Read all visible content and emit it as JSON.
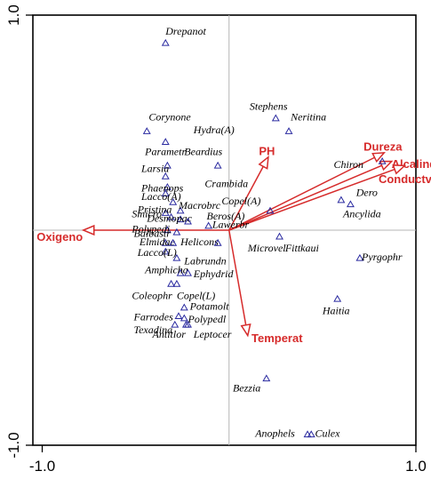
{
  "chart_data": {
    "type": "scatter",
    "title": "",
    "xlabel": "",
    "ylabel": "",
    "xlim": [
      -1.05,
      1.0
    ],
    "ylim": [
      -1.0,
      1.0
    ],
    "x_ticks": [
      {
        "value": -1.0,
        "label": "-1.0"
      },
      {
        "value": 1.0,
        "label": "1.0"
      }
    ],
    "y_ticks": [
      {
        "value": 1.0,
        "label": "1.0"
      },
      {
        "value": -1.0,
        "label": "-1.0"
      }
    ],
    "zero_lines": true,
    "point_color": "#2a2aa0",
    "vector_color": "#d62b2b",
    "species": [
      {
        "name": "Drepanot",
        "x": -0.34,
        "y": 0.87,
        "lx": -0.34,
        "ly": 0.91
      },
      {
        "name": "Stephens",
        "x": 0.25,
        "y": 0.52,
        "lx": 0.11,
        "ly": 0.56
      },
      {
        "name": "Neritina",
        "x": 0.32,
        "y": 0.46,
        "lx": 0.33,
        "ly": 0.51
      },
      {
        "name": "Corynone",
        "x": -0.44,
        "y": 0.46,
        "lx": -0.43,
        "ly": 0.51
      },
      {
        "name": "Hydra(A)",
        "x": -0.34,
        "y": 0.41,
        "lx": -0.19,
        "ly": 0.45
      },
      {
        "name": "Parametr",
        "x": -0.33,
        "y": 0.3,
        "lx": -0.45,
        "ly": 0.35
      },
      {
        "name": "Beardius",
        "x": -0.06,
        "y": 0.3,
        "lx": -0.24,
        "ly": 0.35
      },
      {
        "name": "Larsia",
        "x": -0.34,
        "y": 0.25,
        "lx": -0.47,
        "ly": 0.27
      },
      {
        "name": "Crambida",
        "x": -0.33,
        "y": 0.2,
        "lx": -0.13,
        "ly": 0.2
      },
      {
        "name": "Phaenops",
        "x": -0.34,
        "y": 0.17,
        "lx": -0.47,
        "ly": 0.18
      },
      {
        "name": "Lacco(A)",
        "x": -0.3,
        "y": 0.13,
        "lx": -0.47,
        "ly": 0.14
      },
      {
        "name": "Copel(A)",
        "x": 0.22,
        "y": 0.09,
        "lx": -0.04,
        "ly": 0.12
      },
      {
        "name": "Macrobrc",
        "x": -0.26,
        "y": 0.09,
        "lx": -0.27,
        "ly": 0.1
      },
      {
        "name": "Pristina",
        "x": -0.34,
        "y": 0.08,
        "lx": -0.49,
        "ly": 0.08
      },
      {
        "name": "Smicro",
        "x": -0.31,
        "y": 0.06,
        "lx": -0.52,
        "ly": 0.06
      },
      {
        "name": "Desmopac",
        "x": -0.26,
        "y": 0.05,
        "lx": -0.44,
        "ly": 0.04
      },
      {
        "name": "Beros(A)",
        "x": -0.22,
        "y": 0.04,
        "lx": -0.12,
        "ly": 0.05
      },
      {
        "name": "Lawerbr",
        "x": -0.11,
        "y": 0.02,
        "lx": -0.09,
        "ly": 0.01
      },
      {
        "name": "Polypedi",
        "x": -0.33,
        "y": 0.0,
        "lx": -0.52,
        "ly": -0.01
      },
      {
        "name": "Balbastr",
        "x": -0.28,
        "y": -0.01,
        "lx": -0.51,
        "ly": -0.03
      },
      {
        "name": "Elmidae",
        "x": -0.34,
        "y": -0.06,
        "lx": -0.48,
        "ly": -0.07
      },
      {
        "name": "Helicons",
        "x": -0.3,
        "y": -0.06,
        "lx": -0.26,
        "ly": -0.07
      },
      {
        "name": "Microvel",
        "x": -0.06,
        "y": -0.06,
        "lx": 0.1,
        "ly": -0.1
      },
      {
        "name": "Fittkaui",
        "x": 0.27,
        "y": -0.03,
        "lx": 0.3,
        "ly": -0.1
      },
      {
        "name": "Lacco(L)",
        "x": -0.34,
        "y": -0.1,
        "lx": -0.49,
        "ly": -0.12
      },
      {
        "name": "Pyrgophr",
        "x": 0.7,
        "y": -0.13,
        "lx": 0.71,
        "ly": -0.14
      },
      {
        "name": "Labrundn",
        "x": -0.28,
        "y": -0.13,
        "lx": -0.24,
        "ly": -0.16
      },
      {
        "name": "Amphicha",
        "x": -0.26,
        "y": -0.2,
        "lx": -0.45,
        "ly": -0.2
      },
      {
        "name": "Ephydrid",
        "x": -0.22,
        "y": -0.2,
        "lx": -0.19,
        "ly": -0.22
      },
      {
        "name": "Coleophr",
        "x": -0.31,
        "y": -0.25,
        "lx": -0.52,
        "ly": -0.32
      },
      {
        "name": "Copel(L)",
        "x": -0.28,
        "y": -0.25,
        "lx": -0.28,
        "ly": -0.32
      },
      {
        "name": "Potamolt",
        "x": -0.24,
        "y": -0.36,
        "lx": -0.21,
        "ly": -0.37
      },
      {
        "name": "Haitia",
        "x": 0.58,
        "y": -0.32,
        "lx": 0.5,
        "ly": -0.39
      },
      {
        "name": "Farrodes",
        "x": -0.27,
        "y": -0.4,
        "lx": -0.51,
        "ly": -0.42
      },
      {
        "name": "Polypedl",
        "x": -0.24,
        "y": -0.41,
        "lx": -0.22,
        "ly": -0.43
      },
      {
        "name": "Texadina",
        "x": -0.23,
        "y": -0.44,
        "lx": -0.51,
        "ly": -0.48
      },
      {
        "name": "Antitlor",
        "x": -0.29,
        "y": -0.44,
        "lx": -0.41,
        "ly": -0.5
      },
      {
        "name": "Leptocer",
        "x": -0.22,
        "y": -0.44,
        "lx": -0.19,
        "ly": -0.5
      },
      {
        "name": "Bezzia",
        "x": 0.2,
        "y": -0.69,
        "lx": 0.02,
        "ly": -0.75
      },
      {
        "name": "Anophels",
        "x": 0.42,
        "y": -0.95,
        "lx": 0.14,
        "ly": -0.96
      },
      {
        "name": "Culex",
        "x": 0.44,
        "y": -0.95,
        "lx": 0.46,
        "ly": -0.96
      },
      {
        "name": "Chiron",
        "x": 0.82,
        "y": 0.32,
        "lx": 0.56,
        "ly": 0.29
      },
      {
        "name": "Dero",
        "x": 0.6,
        "y": 0.14,
        "lx": 0.68,
        "ly": 0.16
      },
      {
        "name": "Ancylida",
        "x": 0.65,
        "y": 0.12,
        "lx": 0.61,
        "ly": 0.06
      }
    ],
    "vectors": [
      {
        "name": "PH",
        "x": 0.21,
        "y": 0.34,
        "lx": 0.16,
        "ly": 0.35
      },
      {
        "name": "Dureza",
        "x": 0.83,
        "y": 0.36,
        "lx": 0.72,
        "ly": 0.37
      },
      {
        "name": "Alcalind",
        "x": 0.87,
        "y": 0.32,
        "lx": 0.87,
        "ly": 0.29
      },
      {
        "name": "Conductv",
        "x": 0.94,
        "y": 0.3,
        "lx": 0.8,
        "ly": 0.22
      },
      {
        "name": "Oxigeno",
        "x": -0.78,
        "y": 0.0,
        "lx": -1.03,
        "ly": -0.05
      },
      {
        "name": "Temperat",
        "x": 0.1,
        "y": -0.49,
        "lx": 0.12,
        "ly": -0.52
      }
    ]
  }
}
